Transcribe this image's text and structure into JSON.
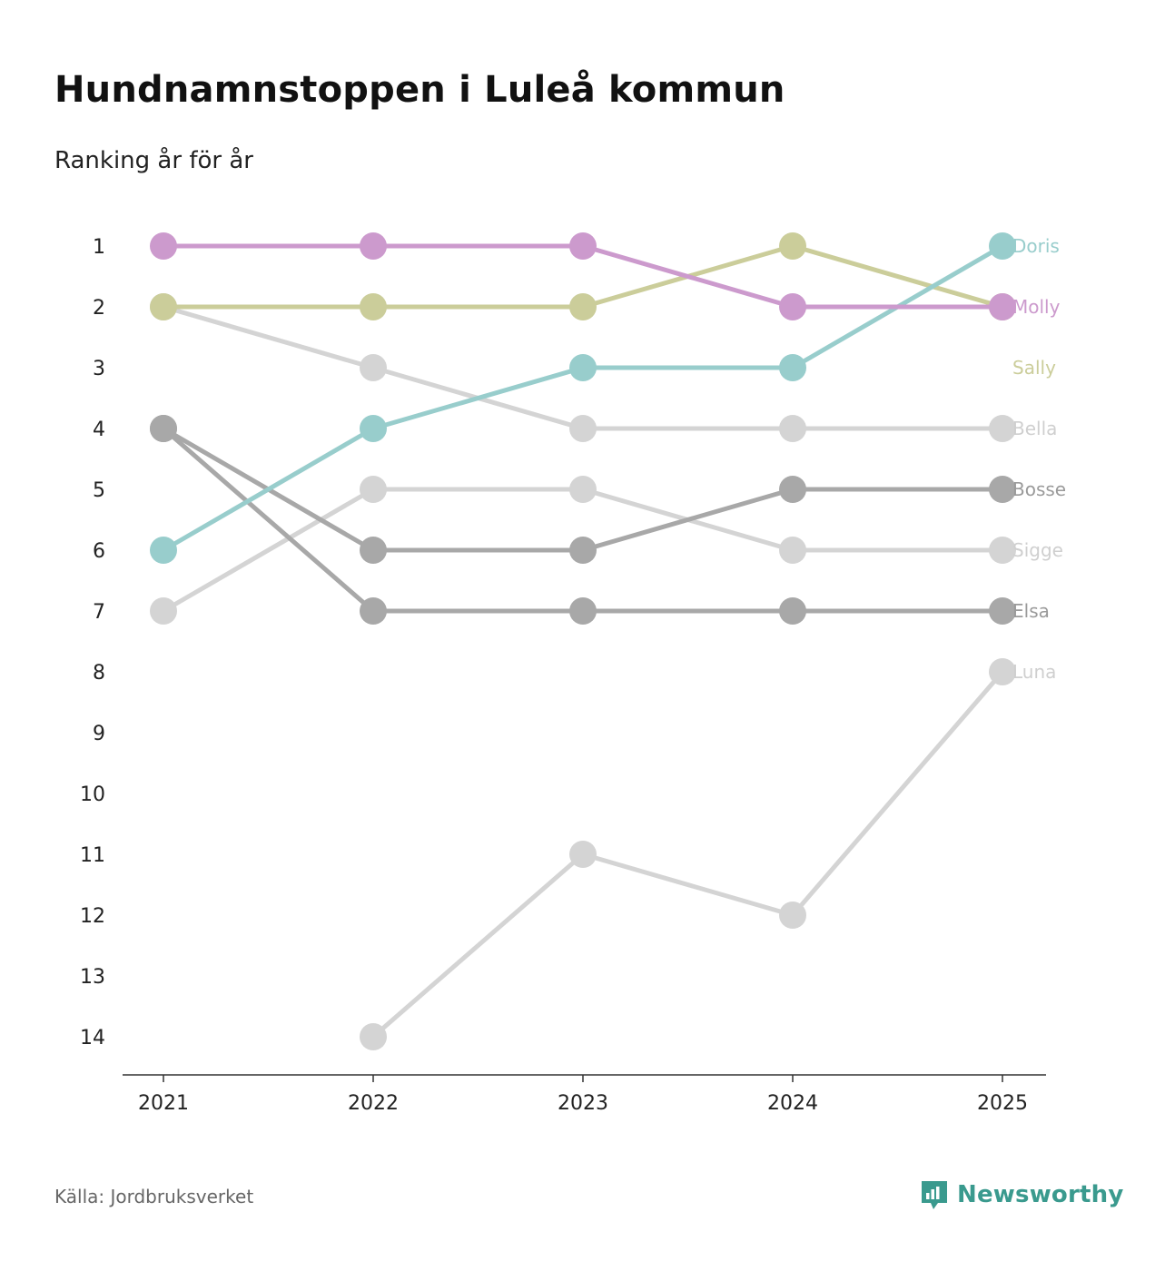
{
  "title": "Hundnamnstoppen i Luleå kommun",
  "subtitle": "Ranking år för år",
  "source": "Källa: Jordbruksverket",
  "brand": {
    "name": "Newsworthy",
    "icon": "newsworthy-logo-icon",
    "color": "#3a9a8e"
  },
  "chart_data": {
    "type": "line",
    "subtype": "bump",
    "title": "Hundnamnstoppen i Luleå kommun",
    "subtitle": "Ranking år för år",
    "x": [
      "2021",
      "2022",
      "2023",
      "2024",
      "2025"
    ],
    "y_ticks": [
      "1",
      "2",
      "3",
      "4",
      "5",
      "6",
      "7",
      "8",
      "9",
      "10",
      "11",
      "12",
      "13",
      "14"
    ],
    "ylim": [
      1,
      14
    ],
    "y_inverted": true,
    "series": [
      {
        "name": "Luna",
        "color": "#d4d4d4",
        "values": [
          null,
          14,
          11,
          12,
          8
        ]
      },
      {
        "name": "Sigge",
        "color": "#d4d4d4",
        "values": [
          7,
          5,
          5,
          6,
          6
        ]
      },
      {
        "name": "Bella",
        "color": "#d4d4d4",
        "values": [
          2,
          3,
          4,
          4,
          4
        ]
      },
      {
        "name": "Elsa",
        "color": "#a8a8a8",
        "values": [
          4,
          7,
          7,
          7,
          7
        ]
      },
      {
        "name": "Bosse",
        "color": "#a8a8a8",
        "values": [
          4,
          6,
          6,
          5,
          5
        ]
      },
      {
        "name": "Sally",
        "color": "#cbcd9a",
        "values": [
          2,
          2,
          2,
          1,
          2
        ]
      },
      {
        "name": "Doris",
        "color": "#98cdcc",
        "values": [
          6,
          4,
          3,
          3,
          1
        ]
      },
      {
        "name": "Molly",
        "color": "#cc9acd",
        "values": [
          1,
          1,
          1,
          2,
          2
        ]
      }
    ],
    "end_labels": [
      {
        "name": "Doris",
        "rank": 1
      },
      {
        "name": "Molly",
        "rank": 2
      },
      {
        "name": "Sally",
        "rank": 3
      },
      {
        "name": "Bella",
        "rank": 4
      },
      {
        "name": "Bosse",
        "rank": 5
      },
      {
        "name": "Sigge",
        "rank": 6
      },
      {
        "name": "Elsa",
        "rank": 7
      },
      {
        "name": "Luna",
        "rank": 8
      }
    ]
  }
}
